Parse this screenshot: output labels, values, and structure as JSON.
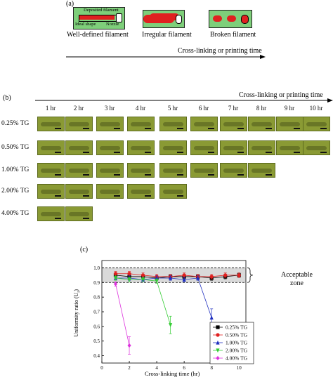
{
  "panel_a": {
    "label": "(a)",
    "schematic_labels": {
      "deposited": "Deposited filament",
      "ideal": "Ideal shape",
      "nozzle": "Nozzle"
    },
    "captions": [
      "Well-defined filament",
      "Irregular filament",
      "Broken filament"
    ],
    "axis_text": "Cross-linking or printing time",
    "colors": {
      "background": "#7ecf7a",
      "filament": "#e02020"
    }
  },
  "panel_b": {
    "label": "(b)",
    "axis_text": "Cross-linking or printing time",
    "hours": [
      "1 hr",
      "2 hr",
      "3 hr",
      "4 hr",
      "5 hr",
      "6 hr",
      "7 hr",
      "8 hr",
      "9 hr",
      "10 hr"
    ],
    "rows": [
      {
        "label": "0.25% TG",
        "count": 10
      },
      {
        "label": "0.50% TG",
        "count": 10
      },
      {
        "label": "1.00% TG",
        "count": 8
      },
      {
        "label": "2.00% TG",
        "count": 5
      },
      {
        "label": "4.00% TG",
        "count": 2
      }
    ]
  },
  "panel_c": {
    "label": "(c)",
    "annotation": [
      "Acceptable",
      "zone"
    ],
    "chart_data": {
      "type": "scatter",
      "xlabel": "Cross-linking time (hr)",
      "ylabel": "Uniformity ratio (U",
      "ylabel_sub": "r",
      "ylabel_suffix": ")",
      "xlim": [
        0,
        10.5
      ],
      "ylim": [
        0.35,
        1.05
      ],
      "xticks": [
        0,
        2,
        4,
        6,
        8,
        10
      ],
      "yticks": [
        0.4,
        0.5,
        0.6,
        0.7,
        0.8,
        0.9,
        1.0
      ],
      "acceptable_zone": [
        0.9,
        1.0
      ],
      "series": [
        {
          "name": "0.25% TG",
          "color": "#000000",
          "marker": "square",
          "x": [
            1,
            2,
            3,
            4,
            5,
            6,
            7,
            8,
            9,
            10
          ],
          "y": [
            0.95,
            0.94,
            0.94,
            0.93,
            0.94,
            0.94,
            0.94,
            0.93,
            0.94,
            0.95
          ]
        },
        {
          "name": "0.50% TG",
          "color": "#e02020",
          "marker": "circle",
          "x": [
            1,
            2,
            3,
            4,
            5,
            6,
            7,
            8,
            9,
            10
          ],
          "y": [
            0.96,
            0.96,
            0.95,
            0.94,
            0.94,
            0.95,
            0.94,
            0.94,
            0.95,
            0.95
          ]
        },
        {
          "name": "1.00% TG",
          "color": "#1f2fbf",
          "marker": "triangle-up",
          "x": [
            1,
            2,
            3,
            4,
            5,
            6,
            7,
            8
          ],
          "y": [
            0.93,
            0.93,
            0.92,
            0.93,
            0.93,
            0.92,
            0.93,
            0.66
          ]
        },
        {
          "name": "2.00% TG",
          "color": "#33cc33",
          "marker": "triangle-down",
          "x": [
            1,
            2,
            3,
            4,
            5
          ],
          "y": [
            0.93,
            0.92,
            0.92,
            0.91,
            0.61
          ]
        },
        {
          "name": "4.00% TG",
          "color": "#dd33dd",
          "marker": "diamond",
          "x": [
            1,
            2
          ],
          "y": [
            0.89,
            0.47
          ]
        }
      ]
    }
  }
}
